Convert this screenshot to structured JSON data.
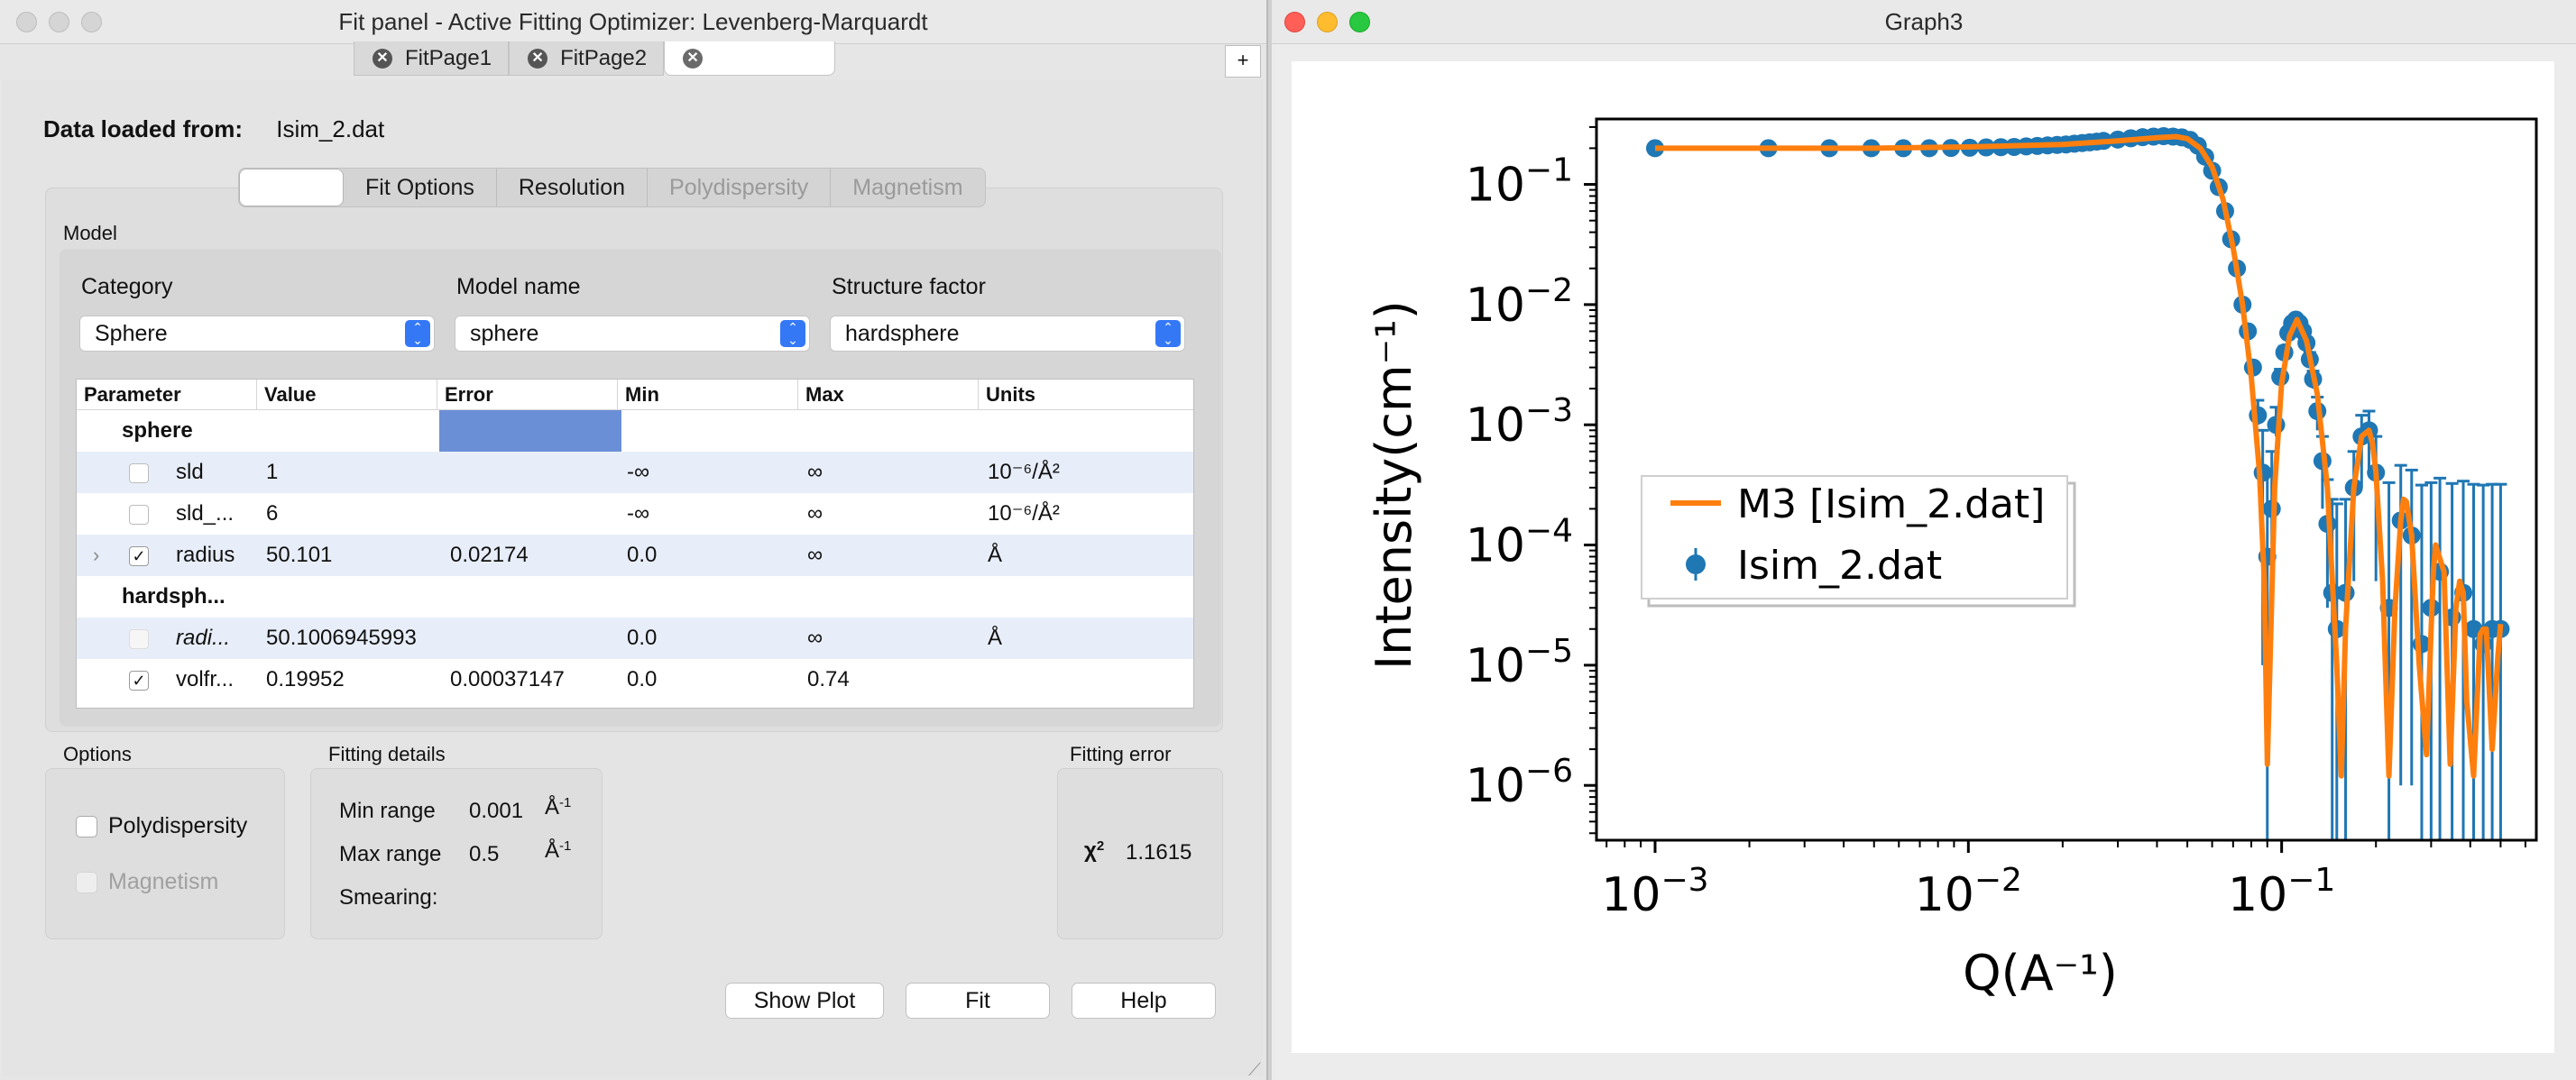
{
  "fit_window": {
    "title": "Fit panel - Active Fitting Optimizer: Levenberg-Marquardt",
    "tabs": [
      {
        "label": "FitPage1"
      },
      {
        "label": "FitPage2"
      },
      {
        "label": ""
      }
    ],
    "add_tab_label": "+",
    "data_loaded_label": "Data loaded from:",
    "data_loaded_value": "Isim_2.dat",
    "sub_tabs": [
      {
        "label": "",
        "state": "selected"
      },
      {
        "label": "Fit Options",
        "state": "normal"
      },
      {
        "label": "Resolution",
        "state": "normal"
      },
      {
        "label": "Polydispersity",
        "state": "disabled"
      },
      {
        "label": "Magnetism",
        "state": "disabled"
      }
    ],
    "model_group_title": "Model",
    "category_label": "Category",
    "category_value": "Sphere",
    "model_name_label": "Model name",
    "model_name_value": "sphere",
    "structure_factor_label": "Structure factor",
    "structure_factor_value": "hardsphere",
    "table_headers": [
      "Parameter",
      "Value",
      "Error",
      "Min",
      "Max",
      "Units"
    ],
    "table_rows": [
      {
        "kind": "group",
        "name": "sphere"
      },
      {
        "kind": "param",
        "checked": false,
        "name": "sld",
        "value": "1",
        "error": "",
        "min": "-∞",
        "max": "∞",
        "units": "10⁻⁶/Å²"
      },
      {
        "kind": "param",
        "checked": false,
        "name": "sld_...",
        "value": "6",
        "error": "",
        "min": "-∞",
        "max": "∞",
        "units": "10⁻⁶/Å²"
      },
      {
        "kind": "param",
        "checked": true,
        "expand": true,
        "name": "radius",
        "value": "50.101",
        "error": "0.02174",
        "min": "0.0",
        "max": "∞",
        "units": "Å"
      },
      {
        "kind": "group",
        "name": "hardsph..."
      },
      {
        "kind": "param",
        "checked": false,
        "faint": true,
        "italic": true,
        "name": "radi...",
        "value": "50.1006945993",
        "error": "",
        "min": "0.0",
        "max": "∞",
        "units": "Å"
      },
      {
        "kind": "param",
        "checked": true,
        "name": "volfr...",
        "value": "0.19952",
        "error": "0.00037147",
        "min": "0.0",
        "max": "0.74",
        "units": ""
      }
    ],
    "options_title": "Options",
    "opt_polydispersity": "Polydispersity",
    "opt_magnetism": "Magnetism",
    "fitting_details_title": "Fitting details",
    "min_range_label": "Min range",
    "min_range_value": "0.001",
    "max_range_label": "Max range",
    "max_range_value": "0.5",
    "range_unit": "Å",
    "range_unit_exp": "-1",
    "smearing_label": "Smearing:",
    "fitting_error_title": "Fitting error",
    "chi2_symbol": "χ",
    "chi2_exp": "2",
    "chi2_value": "1.1615",
    "btn_show_plot": "Show Plot",
    "btn_fit": "Fit",
    "btn_help": "Help"
  },
  "graph_window": {
    "title": "Graph3"
  },
  "chart_data": {
    "type": "scatter",
    "x_scale": "log",
    "y_scale": "log",
    "xlabel": "Q(A⁻¹)",
    "ylabel": "Intensity(cm⁻¹)",
    "xlim": [
      0.00065,
      0.65
    ],
    "ylim": [
      3.5e-07,
      0.35
    ],
    "x_ticks": [
      0.001,
      0.01,
      0.1
    ],
    "x_tick_labels": [
      {
        "base": "10",
        "exp": "−3"
      },
      {
        "base": "10",
        "exp": "−2"
      },
      {
        "base": "10",
        "exp": "−1"
      }
    ],
    "y_ticks": [
      1e-06,
      1e-05,
      0.0001,
      0.001,
      0.01,
      0.1
    ],
    "y_tick_labels": [
      {
        "base": "10",
        "exp": "−6"
      },
      {
        "base": "10",
        "exp": "−5"
      },
      {
        "base": "10",
        "exp": "−4"
      },
      {
        "base": "10",
        "exp": "−3"
      },
      {
        "base": "10",
        "exp": "−2"
      },
      {
        "base": "10",
        "exp": "−1"
      }
    ],
    "grid": false,
    "legend_position": "center-left",
    "series": [
      {
        "name": "M3 [Isim_2.dat]",
        "kind": "line",
        "color": "#ff7f0e",
        "x": [
          0.001,
          0.002,
          0.005,
          0.01,
          0.02,
          0.03,
          0.04,
          0.046,
          0.05,
          0.055,
          0.06,
          0.065,
          0.07,
          0.075,
          0.08,
          0.085,
          0.088,
          0.09,
          0.095,
          0.1,
          0.106,
          0.112,
          0.12,
          0.13,
          0.14,
          0.15,
          0.155,
          0.16,
          0.17,
          0.18,
          0.19,
          0.195,
          0.2,
          0.21,
          0.22,
          0.23,
          0.24,
          0.245,
          0.25,
          0.26,
          0.275,
          0.29,
          0.3,
          0.305,
          0.31,
          0.33,
          0.345,
          0.36,
          0.37,
          0.38,
          0.39,
          0.41,
          0.43,
          0.44,
          0.45,
          0.47,
          0.49,
          0.5
        ],
        "y": [
          0.2,
          0.2,
          0.2,
          0.205,
          0.215,
          0.23,
          0.245,
          0.25,
          0.24,
          0.2,
          0.14,
          0.075,
          0.03,
          0.01,
          0.0025,
          0.0004,
          5e-05,
          1.5e-06,
          0.0003,
          0.0022,
          0.0055,
          0.0075,
          0.005,
          0.0018,
          0.0003,
          1e-05,
          1.2e-06,
          2e-05,
          0.0003,
          0.0008,
          0.0009,
          0.0007,
          0.0004,
          5e-05,
          1.2e-06,
          3e-05,
          0.00016,
          0.00024,
          0.00023,
          0.00012,
          1e-05,
          1.8e-06,
          2e-05,
          6e-05,
          0.0001,
          6e-05,
          1.5e-06,
          3e-05,
          5e-05,
          4e-05,
          5e-06,
          1.2e-06,
          1.8e-05,
          2e-05,
          2e-05,
          2e-06,
          1.2e-05,
          2.2e-05
        ]
      },
      {
        "name": "Isim_2.dat",
        "kind": "errorbar",
        "color": "#1f77b4",
        "x": [
          0.001,
          0.0023,
          0.0036,
          0.0049,
          0.0062,
          0.0075,
          0.0088,
          0.0101,
          0.0114,
          0.0127,
          0.014,
          0.0153,
          0.0166,
          0.0179,
          0.0192,
          0.0205,
          0.0218,
          0.0231,
          0.0244,
          0.0257,
          0.027,
          0.03,
          0.033,
          0.036,
          0.039,
          0.042,
          0.045,
          0.048,
          0.051,
          0.054,
          0.057,
          0.06,
          0.063,
          0.066,
          0.069,
          0.072,
          0.075,
          0.078,
          0.081,
          0.084,
          0.087,
          0.09,
          0.093,
          0.096,
          0.099,
          0.102,
          0.105,
          0.108,
          0.111,
          0.114,
          0.117,
          0.12,
          0.123,
          0.126,
          0.13,
          0.135,
          0.14,
          0.145,
          0.15,
          0.16,
          0.17,
          0.18,
          0.19,
          0.2,
          0.22,
          0.24,
          0.26,
          0.28,
          0.3,
          0.32,
          0.35,
          0.38,
          0.41,
          0.44,
          0.47,
          0.5
        ],
        "y": [
          0.2,
          0.2,
          0.2,
          0.2,
          0.2,
          0.2,
          0.201,
          0.202,
          0.203,
          0.204,
          0.205,
          0.207,
          0.209,
          0.211,
          0.213,
          0.215,
          0.218,
          0.221,
          0.224,
          0.227,
          0.23,
          0.236,
          0.242,
          0.247,
          0.25,
          0.252,
          0.25,
          0.246,
          0.235,
          0.21,
          0.17,
          0.13,
          0.095,
          0.06,
          0.035,
          0.02,
          0.01,
          0.006,
          0.003,
          0.0012,
          0.0004,
          8e-05,
          0.0002,
          0.001,
          0.0025,
          0.004,
          0.0058,
          0.007,
          0.0075,
          0.007,
          0.006,
          0.0048,
          0.0035,
          0.0024,
          0.0013,
          0.0005,
          0.00015,
          4e-05,
          2e-05,
          4e-05,
          0.0003,
          0.0008,
          0.0009,
          0.0004,
          3e-05,
          0.00016,
          0.00012,
          1.5e-05,
          3e-05,
          6e-05,
          2.5e-05,
          4e-05,
          2e-05,
          1.5e-05,
          2e-05,
          2e-05
        ],
        "err_lo": [
          0,
          0,
          0,
          0,
          0,
          0,
          0,
          0,
          0,
          0,
          0,
          0,
          0,
          0,
          0,
          0,
          0,
          0,
          0,
          0,
          0,
          0,
          0,
          0,
          0,
          0,
          0,
          0,
          0,
          0,
          0,
          0,
          0,
          0,
          0,
          0,
          0,
          0,
          0,
          0.0002,
          0.00039,
          7.98e-05,
          0.0001,
          0.0002,
          0.0003,
          0.0005,
          0.0006,
          0.0006,
          0.0005,
          0.0005,
          0.0005,
          0.0005,
          0.0005,
          0.0004,
          0.0004,
          0.0003,
          0.00012,
          3.99e-05,
          1.99e-05,
          3.99e-05,
          0.00025,
          0.0005,
          0.0005,
          0.00035,
          2.99e-05,
          0.000159,
          0.000119,
          1.49e-05,
          2.99e-05,
          5.99e-05,
          2.49e-05,
          3.99e-05,
          1.99e-05,
          1.49e-05,
          1.99e-05,
          1.99e-05
        ],
        "err_hi": [
          0,
          0,
          0,
          0,
          0,
          0,
          0,
          0,
          0,
          0,
          0,
          0,
          0,
          0,
          0,
          0,
          0,
          0,
          0,
          0,
          0,
          0,
          0,
          0,
          0,
          0,
          0,
          0,
          0,
          0,
          0,
          0,
          0,
          0,
          0,
          0,
          0,
          0,
          0,
          0.0004,
          0.0005,
          0.0003,
          0.0004,
          0.0004,
          0.0004,
          0.0005,
          0.0006,
          0.0006,
          0.0005,
          0.0005,
          0.0005,
          0.0005,
          0.0005,
          0.0004,
          0.0004,
          0.0003,
          0.0002,
          0.0002,
          0.0002,
          0.0002,
          0.0003,
          0.0004,
          0.0004,
          0.0004,
          0.0003,
          0.0003,
          0.0003,
          0.0003,
          0.0003,
          0.0003,
          0.0003,
          0.0003,
          0.0003,
          0.0003,
          0.0003,
          0.0003
        ]
      }
    ]
  }
}
